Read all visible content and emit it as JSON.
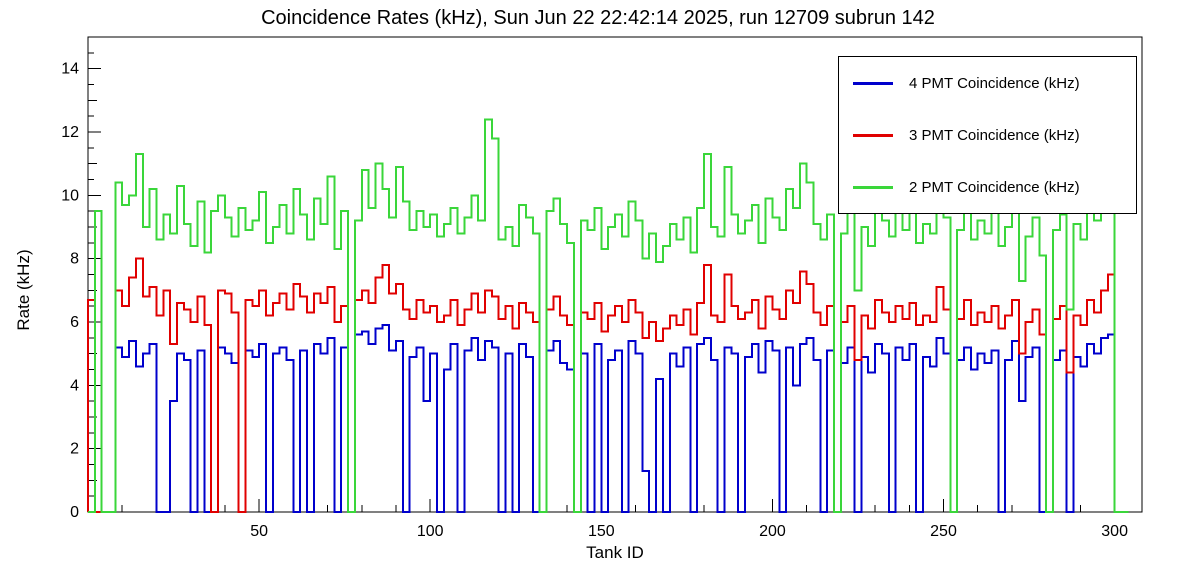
{
  "title": "Coincidence Rates (kHz), Sun Jun 22 22:42:14 2025, run 12709 subrun 142",
  "axes": {
    "x": {
      "label": "Tank ID",
      "min": 0,
      "max": 308,
      "major_ticks": [
        50,
        100,
        150,
        200,
        250,
        300
      ],
      "minor_step": 10
    },
    "y": {
      "label": "Rate (kHz)",
      "min": 0,
      "max": 15,
      "major_ticks": [
        0,
        2,
        4,
        6,
        8,
        10,
        12,
        14
      ],
      "minor_step": 0.5
    }
  },
  "legend": {
    "entries": [
      {
        "label": "4 PMT Coincidence (kHz)",
        "color": "#0000cc"
      },
      {
        "label": "3 PMT Coincidence (kHz)",
        "color": "#e00000"
      },
      {
        "label": "2 PMT Coincidence (kHz)",
        "color": "#3ad63a"
      }
    ]
  },
  "chart_data": {
    "type": "step-histogram",
    "title": "Coincidence Rates (kHz), Sun Jun 22 22:42:14 2025, run 12709 subrun 142",
    "xlabel": "Tank ID",
    "ylabel": "Rate (kHz)",
    "xlim": [
      0,
      308
    ],
    "ylim": [
      0,
      15
    ],
    "x_bin_start": 0,
    "x_bin_width": 2,
    "series": [
      {
        "name": "4 PMT Coincidence (kHz)",
        "color": "#0000cc",
        "values": [
          0,
          0,
          0,
          0,
          5.2,
          4.9,
          5.4,
          4.6,
          5.0,
          5.3,
          0,
          0,
          3.5,
          5.0,
          4.8,
          0,
          5.1,
          0,
          0,
          5.2,
          5.0,
          4.7,
          0,
          5.1,
          4.9,
          5.3,
          0,
          5.0,
          5.2,
          4.8,
          0,
          5.1,
          0,
          5.3,
          5.0,
          5.5,
          0,
          5.2,
          0,
          5.6,
          5.7,
          5.3,
          5.8,
          5.9,
          5.1,
          5.4,
          0,
          4.9,
          5.2,
          3.5,
          5.0,
          0,
          4.5,
          5.3,
          0,
          5.1,
          5.5,
          4.8,
          5.4,
          5.2,
          0,
          5.0,
          0,
          5.3,
          4.9,
          0,
          0,
          5.1,
          5.4,
          4.7,
          4.5,
          0,
          5.0,
          0,
          5.3,
          0,
          4.8,
          5.1,
          0,
          5.4,
          5.0,
          1.3,
          0,
          4.2,
          0,
          5.0,
          4.6,
          5.2,
          0,
          5.3,
          5.5,
          4.8,
          0,
          5.2,
          5.0,
          0,
          4.9,
          5.3,
          4.4,
          5.4,
          5.1,
          0,
          5.2,
          4.0,
          5.3,
          5.5,
          4.8,
          0,
          5.1,
          0,
          4.7,
          5.2,
          0,
          4.9,
          4.4,
          5.3,
          5.0,
          0,
          5.2,
          4.8,
          5.3,
          0,
          4.9,
          4.6,
          5.5,
          5.0,
          0,
          4.8,
          5.2,
          4.5,
          5.0,
          4.7,
          5.1,
          0,
          4.8,
          5.4,
          3.5,
          4.9,
          5.2,
          0,
          0,
          4.8,
          5.1,
          0,
          4.9,
          4.6,
          5.3,
          5.0,
          5.5,
          5.6,
          0,
          0
        ]
      },
      {
        "name": "3 PMT Coincidence (kHz)",
        "color": "#e00000",
        "values": [
          6.7,
          0,
          0,
          0,
          7.0,
          6.5,
          7.4,
          8.0,
          6.8,
          7.1,
          6.2,
          7.0,
          5.3,
          6.6,
          6.4,
          6.0,
          6.8,
          5.9,
          0,
          7.0,
          6.9,
          6.3,
          0,
          6.7,
          6.5,
          7.0,
          6.2,
          6.6,
          6.9,
          6.4,
          7.2,
          6.8,
          6.3,
          6.9,
          6.6,
          7.1,
          6.0,
          6.5,
          0,
          6.7,
          7.0,
          6.6,
          7.4,
          7.8,
          6.9,
          7.2,
          6.4,
          6.1,
          6.7,
          6.3,
          6.5,
          6.0,
          6.2,
          6.7,
          5.9,
          6.4,
          6.9,
          6.3,
          7.0,
          6.8,
          6.1,
          6.5,
          5.8,
          6.6,
          6.3,
          6.0,
          0,
          6.4,
          6.8,
          6.2,
          5.9,
          0,
          6.3,
          6.1,
          6.6,
          5.7,
          6.2,
          6.5,
          6.0,
          6.7,
          6.3,
          5.5,
          6.0,
          5.4,
          5.8,
          6.2,
          5.9,
          6.4,
          5.6,
          6.6,
          7.8,
          6.2,
          6.0,
          7.5,
          6.5,
          6.1,
          6.3,
          6.7,
          5.8,
          6.8,
          6.4,
          6.1,
          7.0,
          6.6,
          7.6,
          7.2,
          6.3,
          5.9,
          6.5,
          0,
          6.0,
          6.5,
          4.8,
          6.2,
          5.8,
          6.7,
          6.3,
          6.0,
          6.5,
          6.1,
          6.6,
          5.9,
          6.2,
          6.0,
          7.1,
          6.4,
          0,
          6.1,
          6.7,
          5.9,
          6.3,
          6.0,
          6.5,
          5.8,
          6.2,
          6.7,
          5.0,
          6.0,
          6.4,
          5.6,
          0,
          6.1,
          6.5,
          4.4,
          6.2,
          5.9,
          6.7,
          6.3,
          7.0,
          7.5,
          0,
          0
        ]
      },
      {
        "name": "2 PMT Coincidence (kHz)",
        "color": "#3ad63a",
        "values": [
          0,
          9.5,
          0,
          0,
          10.4,
          9.7,
          10.0,
          11.3,
          9.0,
          10.2,
          8.6,
          9.4,
          8.8,
          10.3,
          9.1,
          8.4,
          9.8,
          8.2,
          9.5,
          10.0,
          9.3,
          8.7,
          9.6,
          8.9,
          9.2,
          10.1,
          8.5,
          9.0,
          9.7,
          8.8,
          10.2,
          9.4,
          8.6,
          9.9,
          9.1,
          10.6,
          8.3,
          9.5,
          0,
          9.2,
          10.8,
          9.6,
          11.0,
          10.2,
          9.3,
          10.9,
          9.8,
          8.9,
          9.5,
          9.0,
          9.4,
          8.7,
          9.1,
          9.6,
          8.8,
          9.3,
          10.0,
          9.2,
          12.4,
          11.8,
          8.6,
          9.0,
          8.4,
          9.7,
          9.3,
          8.8,
          0,
          9.5,
          9.9,
          9.1,
          8.5,
          0,
          9.2,
          8.9,
          9.6,
          8.3,
          9.0,
          9.4,
          8.7,
          9.8,
          9.2,
          8.0,
          8.8,
          7.9,
          8.4,
          9.1,
          8.6,
          9.3,
          8.2,
          9.6,
          11.3,
          9.0,
          8.7,
          10.9,
          9.4,
          8.8,
          9.2,
          9.7,
          8.5,
          9.9,
          9.3,
          8.9,
          10.2,
          9.6,
          11.0,
          10.4,
          9.1,
          8.6,
          9.4,
          0,
          8.8,
          9.5,
          7.0,
          9.0,
          8.4,
          9.8,
          9.2,
          8.7,
          9.5,
          8.9,
          9.6,
          8.5,
          9.1,
          8.8,
          10.4,
          9.3,
          0,
          8.9,
          9.7,
          8.6,
          9.2,
          8.8,
          9.5,
          8.4,
          9.0,
          9.8,
          7.3,
          8.7,
          9.3,
          8.1,
          0,
          8.9,
          9.4,
          6.4,
          9.1,
          8.6,
          9.8,
          9.2,
          10.1,
          10.4,
          0,
          0
        ]
      }
    ]
  }
}
